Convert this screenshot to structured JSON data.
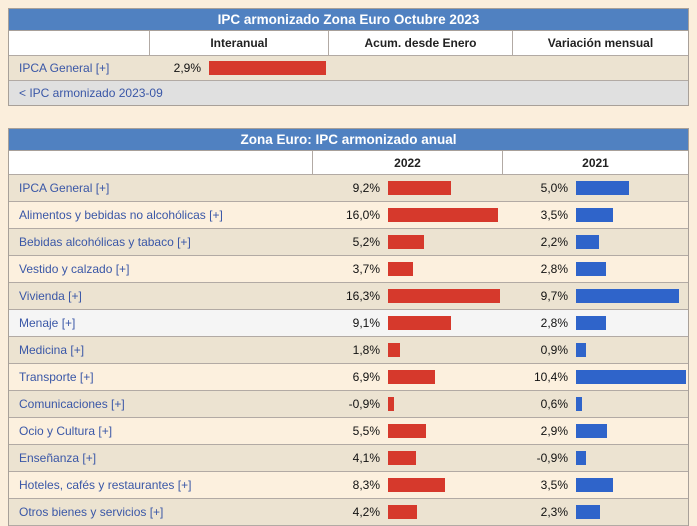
{
  "colors": {
    "page_background": "#fbeedc",
    "title_bar": "#5081c1",
    "bar_2022_red": "#d6392c",
    "bar_2021_blue": "#2f64ca",
    "link_text": "#3a57a7",
    "row_beige": "#ece3d1",
    "row_cream": "#fcf0de",
    "row_highlight": "#f5f5f5",
    "footer_gray": "#e0e0e0"
  },
  "table1": {
    "title": "IPC armonizado Zona Euro Octubre 2023",
    "columns": [
      "Interanual",
      "Acum. desde Enero",
      "Variación mensual"
    ],
    "row": {
      "label": "IPCA General [+]",
      "value_text": "2,9%",
      "value_num": 2.9,
      "bar_max": 2.9
    },
    "footer_link": "< IPC armonizado 2023-09"
  },
  "table2": {
    "title": "Zona Euro: IPC armonizado anual",
    "columns": [
      "2022",
      "2021"
    ],
    "max_2022": 16.3,
    "max_2021": 10.4,
    "highlighted_row_index": 5,
    "rows": [
      {
        "label": "IPCA General [+]",
        "v2022": "9,2%",
        "n2022": 9.2,
        "v2021": "5,0%",
        "n2021": 5.0
      },
      {
        "label": "Alimentos y bebidas no alcohólicas [+]",
        "v2022": "16,0%",
        "n2022": 16.0,
        "v2021": "3,5%",
        "n2021": 3.5
      },
      {
        "label": "Bebidas alcohólicas y tabaco [+]",
        "v2022": "5,2%",
        "n2022": 5.2,
        "v2021": "2,2%",
        "n2021": 2.2
      },
      {
        "label": "Vestido y calzado [+]",
        "v2022": "3,7%",
        "n2022": 3.7,
        "v2021": "2,8%",
        "n2021": 2.8
      },
      {
        "label": "Vivienda [+]",
        "v2022": "16,3%",
        "n2022": 16.3,
        "v2021": "9,7%",
        "n2021": 9.7
      },
      {
        "label": "Menaje [+]",
        "v2022": "9,1%",
        "n2022": 9.1,
        "v2021": "2,8%",
        "n2021": 2.8
      },
      {
        "label": "Medicina [+]",
        "v2022": "1,8%",
        "n2022": 1.8,
        "v2021": "0,9%",
        "n2021": 0.9
      },
      {
        "label": "Transporte [+]",
        "v2022": "6,9%",
        "n2022": 6.9,
        "v2021": "10,4%",
        "n2021": 10.4
      },
      {
        "label": "Comunicaciones [+]",
        "v2022": "-0,9%",
        "n2022": -0.9,
        "v2021": "0,6%",
        "n2021": 0.6
      },
      {
        "label": "Ocio y Cultura [+]",
        "v2022": "5,5%",
        "n2022": 5.5,
        "v2021": "2,9%",
        "n2021": 2.9
      },
      {
        "label": "Enseñanza [+]",
        "v2022": "4,1%",
        "n2022": 4.1,
        "v2021": "-0,9%",
        "n2021": -0.9
      },
      {
        "label": "Hoteles, cafés y restaurantes [+]",
        "v2022": "8,3%",
        "n2022": 8.3,
        "v2021": "3,5%",
        "n2021": 3.5
      },
      {
        "label": "Otros bienes y servicios [+]",
        "v2022": "4,2%",
        "n2022": 4.2,
        "v2021": "2,3%",
        "n2021": 2.3
      }
    ]
  },
  "chart_data": [
    {
      "type": "bar",
      "title": "IPC armonizado Zona Euro Octubre 2023",
      "categories": [
        "IPCA General"
      ],
      "series": [
        {
          "name": "Interanual",
          "values": [
            2.9
          ],
          "color": "#d6392c"
        },
        {
          "name": "Acum. desde Enero",
          "values": [
            null
          ]
        },
        {
          "name": "Variación mensual",
          "values": [
            null
          ]
        }
      ],
      "value_suffix": "%",
      "legend_position": "column-headers",
      "grid": false
    },
    {
      "type": "bar",
      "title": "Zona Euro: IPC armonizado anual",
      "categories": [
        "IPCA General",
        "Alimentos y bebidas no alcohólicas",
        "Bebidas alcohólicas y tabaco",
        "Vestido y calzado",
        "Vivienda",
        "Menaje",
        "Medicina",
        "Transporte",
        "Comunicaciones",
        "Ocio y Cultura",
        "Enseñanza",
        "Hoteles, cafés y restaurantes",
        "Otros bienes y servicios"
      ],
      "series": [
        {
          "name": "2022",
          "values": [
            9.2,
            16.0,
            5.2,
            3.7,
            16.3,
            9.1,
            1.8,
            6.9,
            -0.9,
            5.5,
            4.1,
            8.3,
            4.2
          ],
          "color": "#d6392c",
          "axis_max": 16.3
        },
        {
          "name": "2021",
          "values": [
            5.0,
            3.5,
            2.2,
            2.8,
            9.7,
            2.8,
            0.9,
            10.4,
            0.6,
            2.9,
            -0.9,
            3.5,
            2.3
          ],
          "color": "#2f64ca",
          "axis_max": 10.4
        }
      ],
      "value_suffix": "%",
      "legend_position": "column-headers",
      "grid": false
    }
  ]
}
